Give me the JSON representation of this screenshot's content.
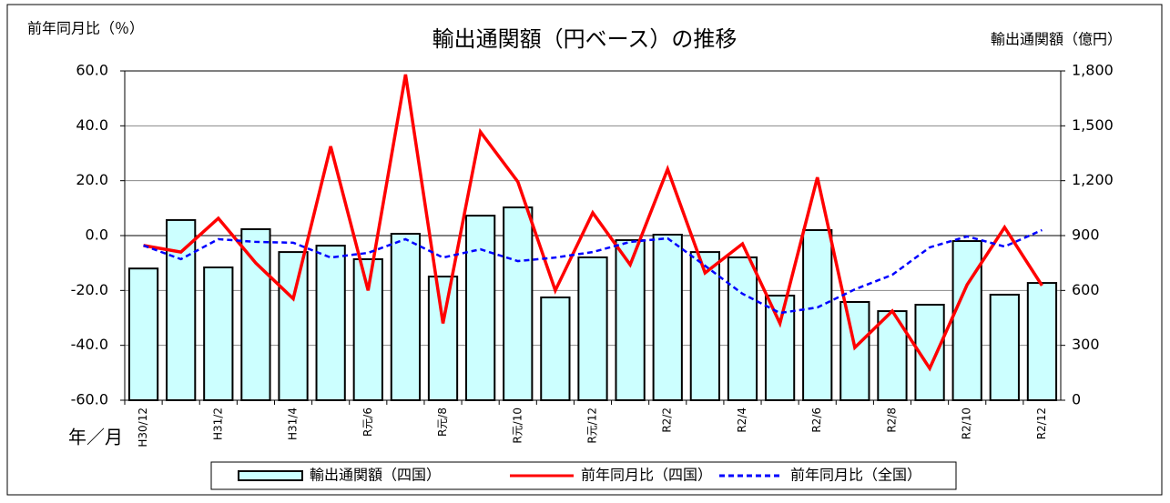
{
  "chart_data": {
    "type": "combo",
    "title": "輸出通関額（円ベース）の推移",
    "y_label": "前年同月比（％）",
    "y2_label": "輸出通関額（億円）",
    "x_label": "年／月",
    "categories": [
      "H30/12",
      null,
      "H31/2",
      null,
      "H31/4",
      null,
      "R元/6",
      null,
      "R元/8",
      null,
      "R元/10",
      null,
      "R元/12",
      null,
      "R2/2",
      null,
      "R2/4",
      null,
      "R2/6",
      null,
      "R2/8",
      null,
      "R2/10",
      null,
      "R2/12"
    ],
    "series": [
      {
        "name": "輸出通関額（四国）",
        "type": "bar",
        "axis": "y2",
        "color": "#ccffff",
        "values": [
          720,
          985,
          726,
          935,
          810,
          845,
          771,
          910,
          676,
          1009,
          1054,
          562,
          781,
          875,
          905,
          810,
          781,
          572,
          930,
          537,
          487,
          522,
          870,
          577,
          641
        ]
      },
      {
        "name": "前年同月比（四国）",
        "type": "line",
        "color": "#ff0000",
        "values": [
          -3.6,
          -6,
          6.3,
          -10,
          -23,
          32.5,
          -20,
          58.7,
          -32,
          37.8,
          19.6,
          -20,
          8.3,
          -10.6,
          24.2,
          -13.6,
          -3,
          -32,
          21.2,
          -40.8,
          -27.5,
          -48.4,
          -17.9,
          3,
          -18.2
        ]
      },
      {
        "name": "前年同月比（全国）",
        "type": "dashed",
        "color": "#0000ff",
        "values": [
          -3.6,
          -8.6,
          -1.3,
          -2.3,
          -2.6,
          -8,
          -6.3,
          -1.3,
          -8,
          -5,
          -9.3,
          -8,
          -6,
          -2.3,
          -1,
          -11,
          -21.2,
          -28.2,
          -26.2,
          -19.6,
          -14.3,
          -4.3,
          -0.3,
          -4,
          2
        ]
      }
    ],
    "ylim": [
      -60,
      60
    ],
    "yticks": [
      {
        "value": -60,
        "label": "-60.0"
      },
      {
        "value": -40,
        "label": "-40.0"
      },
      {
        "value": -20,
        "label": "-20.0"
      },
      {
        "value": 0,
        "label": "0.0"
      },
      {
        "value": 20,
        "label": "20.0"
      },
      {
        "value": 40,
        "label": "40.0"
      },
      {
        "value": 60,
        "label": "60.0"
      }
    ],
    "y2lim": [
      0,
      1800
    ],
    "y2ticks": [
      0,
      300,
      600,
      900,
      {
        "value": 1200,
        "label": "1,200"
      },
      {
        "value": 1500,
        "label": "1,500"
      },
      {
        "value": 1800,
        "label": "1,800"
      }
    ],
    "grid": true
  }
}
